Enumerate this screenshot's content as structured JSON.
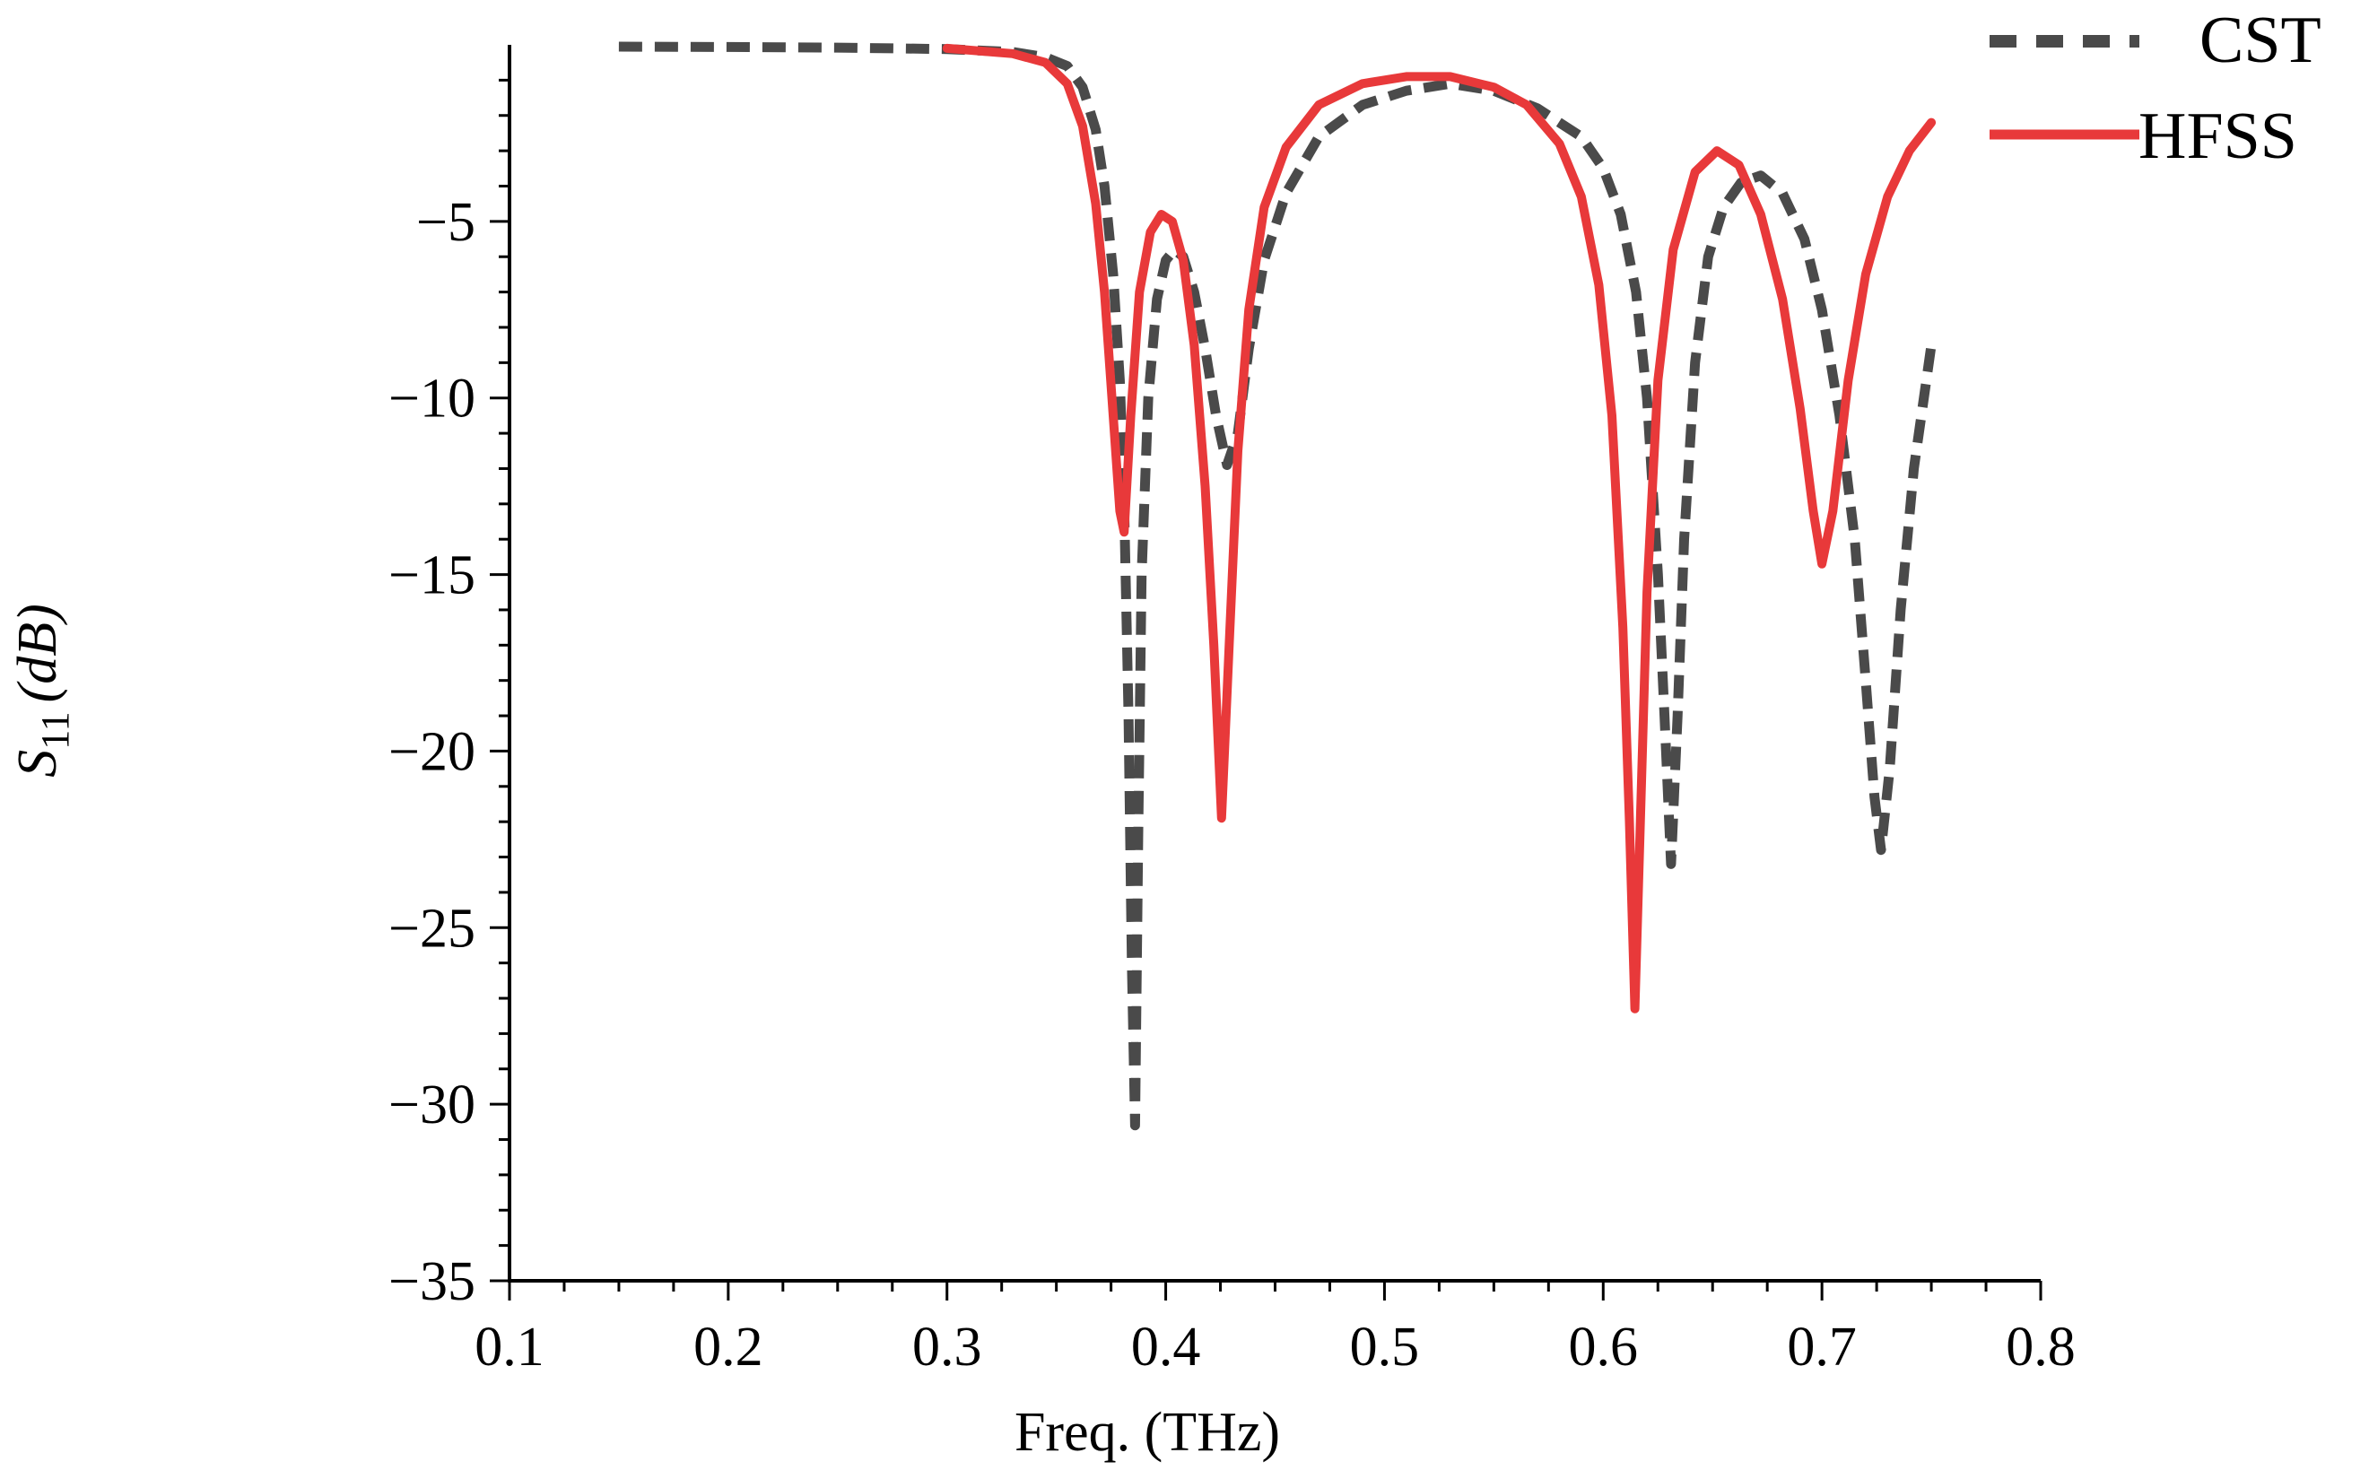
{
  "chart_data": {
    "type": "line",
    "xlabel": "Freq. (THz)",
    "ylabel": "S11 (dB)",
    "ylabel_parts": {
      "base": "S",
      "sub": "11",
      "unit": "(dB)"
    },
    "xlim": [
      0.1,
      0.8
    ],
    "ylim": [
      -35,
      0
    ],
    "xticks": [
      0.1,
      0.2,
      0.3,
      0.4,
      0.5,
      0.6,
      0.7,
      0.8
    ],
    "xtick_labels": [
      "0.1",
      "0.2",
      "0.3",
      "0.4",
      "0.5",
      "0.6",
      "0.7",
      "0.8"
    ],
    "yticks": [
      -5,
      -10,
      -15,
      -20,
      -25,
      -30,
      -35
    ],
    "ytick_labels": [
      "−5",
      "−10",
      "−15",
      "−20",
      "−25",
      "−30",
      "−35"
    ],
    "grid": false,
    "legend_position": "top-right",
    "series": [
      {
        "name": "CST",
        "color": "#4a4a4a",
        "style": "dashed",
        "points": [
          [
            0.15,
            -0.05
          ],
          [
            0.2,
            -0.06
          ],
          [
            0.25,
            -0.08
          ],
          [
            0.3,
            -0.12
          ],
          [
            0.33,
            -0.2
          ],
          [
            0.345,
            -0.35
          ],
          [
            0.355,
            -0.6
          ],
          [
            0.362,
            -1.2
          ],
          [
            0.368,
            -2.4
          ],
          [
            0.372,
            -4.0
          ],
          [
            0.376,
            -6.5
          ],
          [
            0.379,
            -9.5
          ],
          [
            0.381,
            -13.0
          ],
          [
            0.383,
            -19.0
          ],
          [
            0.3845,
            -26.0
          ],
          [
            0.386,
            -30.6
          ],
          [
            0.3875,
            -22.0
          ],
          [
            0.389,
            -15.0
          ],
          [
            0.392,
            -10.0
          ],
          [
            0.396,
            -7.2
          ],
          [
            0.4,
            -6.1
          ],
          [
            0.404,
            -5.8
          ],
          [
            0.408,
            -6.0
          ],
          [
            0.413,
            -7.0
          ],
          [
            0.418,
            -8.6
          ],
          [
            0.423,
            -10.5
          ],
          [
            0.428,
            -11.9
          ],
          [
            0.433,
            -11.0
          ],
          [
            0.438,
            -8.6
          ],
          [
            0.445,
            -6.1
          ],
          [
            0.455,
            -4.2
          ],
          [
            0.47,
            -2.6
          ],
          [
            0.49,
            -1.7
          ],
          [
            0.51,
            -1.3
          ],
          [
            0.53,
            -1.1
          ],
          [
            0.55,
            -1.3
          ],
          [
            0.57,
            -1.8
          ],
          [
            0.59,
            -2.6
          ],
          [
            0.6,
            -3.5
          ],
          [
            0.608,
            -4.8
          ],
          [
            0.615,
            -7.0
          ],
          [
            0.62,
            -10.0
          ],
          [
            0.625,
            -15.0
          ],
          [
            0.628,
            -19.0
          ],
          [
            0.631,
            -23.2
          ],
          [
            0.634,
            -19.0
          ],
          [
            0.637,
            -14.0
          ],
          [
            0.642,
            -9.0
          ],
          [
            0.648,
            -6.0
          ],
          [
            0.655,
            -4.6
          ],
          [
            0.663,
            -3.9
          ],
          [
            0.672,
            -3.7
          ],
          [
            0.682,
            -4.2
          ],
          [
            0.692,
            -5.5
          ],
          [
            0.7,
            -7.5
          ],
          [
            0.708,
            -10.5
          ],
          [
            0.715,
            -14.0
          ],
          [
            0.72,
            -18.0
          ],
          [
            0.724,
            -21.3
          ],
          [
            0.727,
            -22.8
          ],
          [
            0.731,
            -20.5
          ],
          [
            0.736,
            -16.0
          ],
          [
            0.742,
            -12.0
          ],
          [
            0.75,
            -8.5
          ]
        ]
      },
      {
        "name": "HFSS",
        "color": "#e8393a",
        "style": "solid",
        "points": [
          [
            0.3,
            -0.1
          ],
          [
            0.33,
            -0.25
          ],
          [
            0.345,
            -0.5
          ],
          [
            0.355,
            -1.1
          ],
          [
            0.362,
            -2.3
          ],
          [
            0.368,
            -4.5
          ],
          [
            0.372,
            -7.0
          ],
          [
            0.376,
            -10.5
          ],
          [
            0.379,
            -13.2
          ],
          [
            0.381,
            -13.8
          ],
          [
            0.384,
            -10.5
          ],
          [
            0.388,
            -7.0
          ],
          [
            0.393,
            -5.3
          ],
          [
            0.398,
            -4.8
          ],
          [
            0.403,
            -5.0
          ],
          [
            0.408,
            -6.1
          ],
          [
            0.413,
            -8.5
          ],
          [
            0.418,
            -12.5
          ],
          [
            0.422,
            -17.0
          ],
          [
            0.4255,
            -21.9
          ],
          [
            0.429,
            -17.0
          ],
          [
            0.433,
            -11.5
          ],
          [
            0.438,
            -7.5
          ],
          [
            0.445,
            -4.6
          ],
          [
            0.455,
            -2.9
          ],
          [
            0.47,
            -1.7
          ],
          [
            0.49,
            -1.1
          ],
          [
            0.51,
            -0.9
          ],
          [
            0.53,
            -0.9
          ],
          [
            0.55,
            -1.2
          ],
          [
            0.565,
            -1.7
          ],
          [
            0.58,
            -2.8
          ],
          [
            0.59,
            -4.3
          ],
          [
            0.598,
            -6.8
          ],
          [
            0.604,
            -10.5
          ],
          [
            0.609,
            -16.5
          ],
          [
            0.612,
            -22.0
          ],
          [
            0.6145,
            -27.3
          ],
          [
            0.617,
            -22.0
          ],
          [
            0.62,
            -15.5
          ],
          [
            0.625,
            -9.5
          ],
          [
            0.632,
            -5.8
          ],
          [
            0.642,
            -3.6
          ],
          [
            0.652,
            -3.0
          ],
          [
            0.662,
            -3.4
          ],
          [
            0.672,
            -4.8
          ],
          [
            0.682,
            -7.2
          ],
          [
            0.69,
            -10.3
          ],
          [
            0.696,
            -13.2
          ],
          [
            0.7,
            -14.7
          ],
          [
            0.705,
            -13.2
          ],
          [
            0.712,
            -9.5
          ],
          [
            0.72,
            -6.5
          ],
          [
            0.73,
            -4.3
          ],
          [
            0.74,
            -3.0
          ],
          [
            0.75,
            -2.2
          ]
        ]
      }
    ]
  }
}
